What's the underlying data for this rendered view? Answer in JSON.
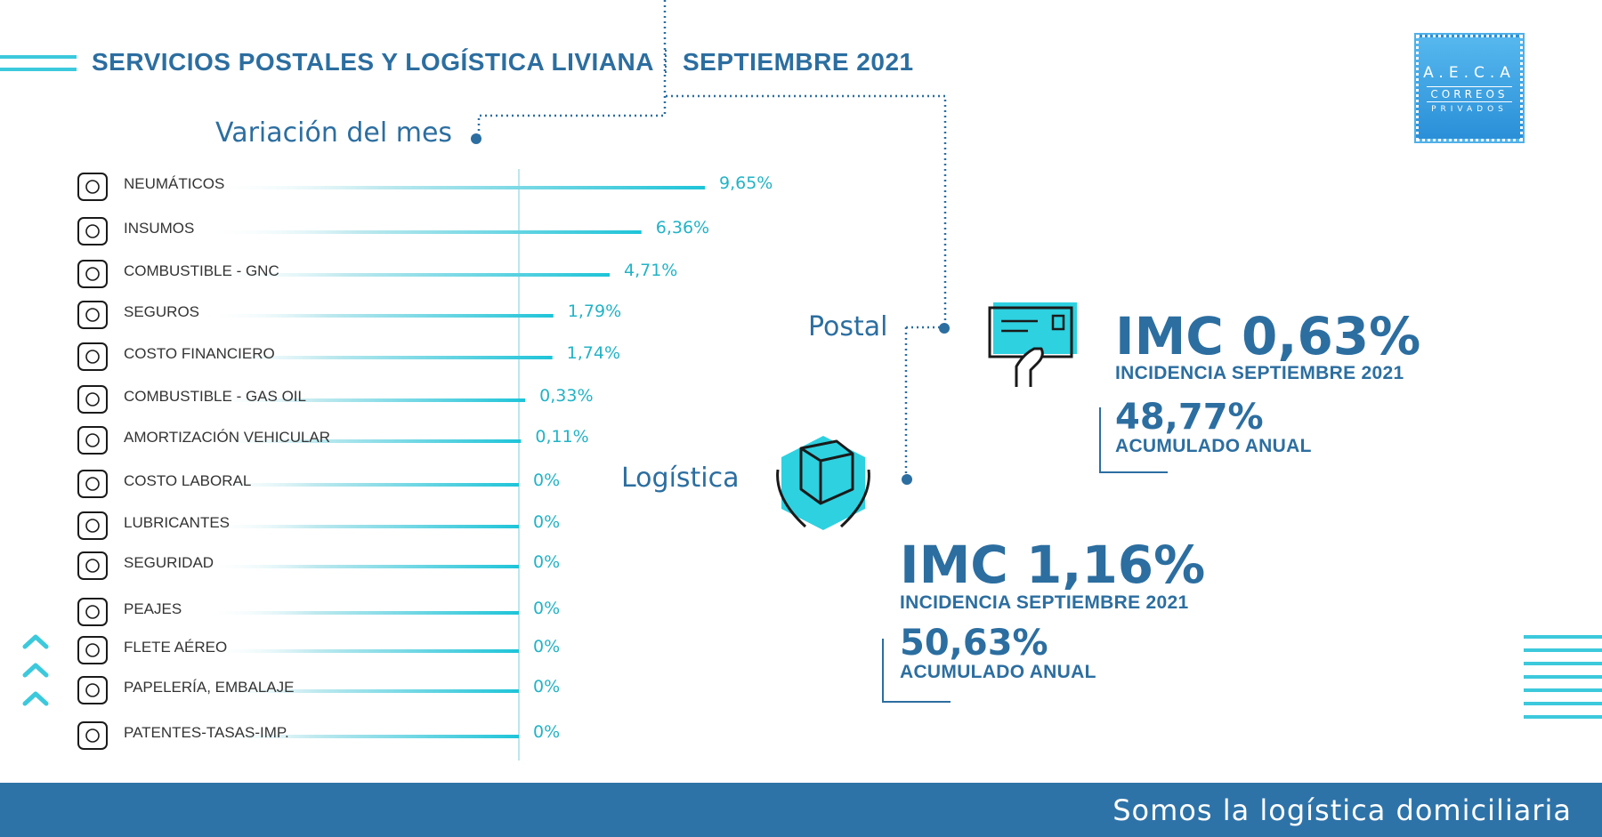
{
  "header": {
    "title": "SERVICIOS POSTALES Y LOGÍSTICA LIVIANA",
    "period": "SEPTIEMBRE 2021"
  },
  "logo": {
    "line1": "A.E.C.A",
    "line2": "CORREOS",
    "line3": "PRIVADOS"
  },
  "chart_data": {
    "type": "bar",
    "title": "Variación del mes",
    "categories": [
      "NEUMÁTICOS",
      "INSUMOS",
      "COMBUSTIBLE - GNC",
      "SEGUROS",
      "COSTO FINANCIERO",
      "COMBUSTIBLE - GAS OIL",
      "AMORTIZACIÓN VEHICULAR",
      "COSTO LABORAL",
      "LUBRICANTES",
      "SEGURIDAD",
      "PEAJES",
      "FLETE AÉREO",
      "PAPELERÍA, EMBALAJE",
      "PATENTES-TASAS-IMP."
    ],
    "values": [
      9.65,
      6.36,
      4.71,
      1.79,
      1.74,
      0.33,
      0.11,
      0,
      0,
      0,
      0,
      0,
      0,
      0
    ],
    "value_labels": [
      "9,65%",
      "6,36%",
      "4,71%",
      "1,79%",
      "1,74%",
      "0,33%",
      "0,11%",
      "0%",
      "0%",
      "0%",
      "0%",
      "0%",
      "0%",
      "0%"
    ],
    "icons": [
      "tire-icon",
      "clipboard-check-icon",
      "gas-cylinder-icon",
      "insurance-box-icon",
      "pie-chart-icon",
      "fuel-pump-icon",
      "truck-icon",
      "coins-icon",
      "oil-can-icon",
      "guard-icon",
      "toll-booth-icon",
      "air-freight-icon",
      "package-icon",
      "license-plate-icon"
    ],
    "orientation": "horizontal",
    "colors": {
      "bar": "#22c4d8",
      "axis": "#a8dde6"
    }
  },
  "postal": {
    "label": "Postal",
    "imc": "IMC 0,63%",
    "incidencia": "INCIDENCIA SEPTIEMBRE 2021",
    "acumulado_value": "48,77%",
    "acumulado_label": "ACUMULADO ANUAL",
    "icon": "envelope-hand-icon"
  },
  "logistica": {
    "label": "Logística",
    "imc": "IMC 1,16%",
    "incidencia": "INCIDENCIA SEPTIEMBRE 2021",
    "acumulado_value": "50,63%",
    "acumulado_label": "ACUMULADO ANUAL",
    "icon": "box-hands-icon"
  },
  "footer": {
    "tagline": "Somos la logística domiciliaria"
  },
  "colors": {
    "brand": "#2c6ea0",
    "accent": "#22c4d8",
    "footer": "#2e73a8"
  }
}
